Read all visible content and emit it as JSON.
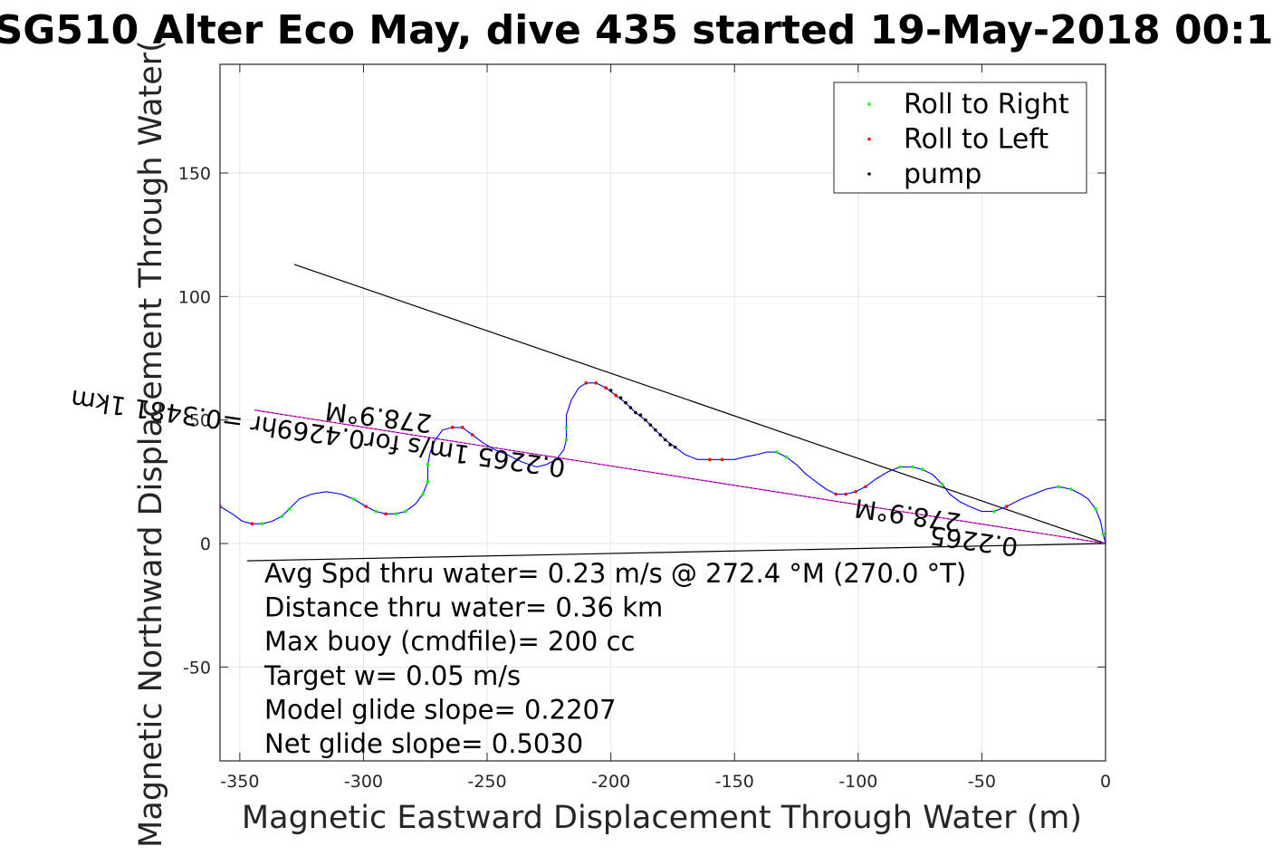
{
  "chart_data": {
    "type": "line",
    "title": "SG510 Alter Eco May, dive 435 started 19-May-2018 00:1",
    "xlabel": "Magnetic Eastward Displacement Through Water (m)",
    "ylabel": "Magnetic Northward Displacement Through Water(",
    "xlim": [
      -358,
      0
    ],
    "ylim": [
      -88,
      194
    ],
    "xticks": [
      -350,
      -300,
      -250,
      -200,
      -150,
      -100,
      -50,
      0
    ],
    "yticks": [
      -50,
      0,
      50,
      100,
      150
    ],
    "grid": true,
    "legend_position": "top-right",
    "legend": [
      {
        "label": "Roll to Right",
        "color": "#00ff00"
      },
      {
        "label": "Roll to Left",
        "color": "#ff0000"
      },
      {
        "label": "pump",
        "color": "#000000"
      }
    ],
    "track_color": "#0000ff",
    "track": [
      [
        0,
        0
      ],
      [
        -1,
        4
      ],
      [
        -2,
        9
      ],
      [
        -4,
        14
      ],
      [
        -7,
        18
      ],
      [
        -10,
        20
      ],
      [
        -14,
        22
      ],
      [
        -19,
        23
      ],
      [
        -24,
        22
      ],
      [
        -29,
        20
      ],
      [
        -34,
        18
      ],
      [
        -40,
        15
      ],
      [
        -45,
        13
      ],
      [
        -50,
        13
      ],
      [
        -55,
        15
      ],
      [
        -59,
        17
      ],
      [
        -63,
        20
      ],
      [
        -66,
        24
      ],
      [
        -70,
        28
      ],
      [
        -74,
        30
      ],
      [
        -78,
        31
      ],
      [
        -83,
        31
      ],
      [
        -88,
        29
      ],
      [
        -93,
        26
      ],
      [
        -97,
        23
      ],
      [
        -101,
        21
      ],
      [
        -105,
        20
      ],
      [
        -109,
        20
      ],
      [
        -113,
        22
      ],
      [
        -117,
        25
      ],
      [
        -121,
        28
      ],
      [
        -125,
        32
      ],
      [
        -129,
        35
      ],
      [
        -133,
        37
      ],
      [
        -137,
        37
      ],
      [
        -141,
        36
      ],
      [
        -146,
        35
      ],
      [
        -150,
        34
      ],
      [
        -155,
        34
      ],
      [
        -160,
        34
      ],
      [
        -165,
        34
      ],
      [
        -170,
        36
      ],
      [
        -174,
        39
      ],
      [
        -178,
        42
      ],
      [
        -182,
        46
      ],
      [
        -186,
        50
      ],
      [
        -190,
        53
      ],
      [
        -194,
        57
      ],
      [
        -198,
        60
      ],
      [
        -202,
        63
      ],
      [
        -206,
        65
      ],
      [
        -210,
        65
      ],
      [
        -213,
        63
      ],
      [
        -216,
        58
      ],
      [
        -218,
        52
      ],
      [
        -218,
        47
      ],
      [
        -218,
        42
      ],
      [
        -219,
        38
      ],
      [
        -222,
        34
      ],
      [
        -226,
        32
      ],
      [
        -230,
        31
      ],
      [
        -236,
        33
      ],
      [
        -242,
        36
      ],
      [
        -247,
        38
      ],
      [
        -252,
        41
      ],
      [
        -256,
        44
      ],
      [
        -260,
        47
      ],
      [
        -264,
        47
      ],
      [
        -268,
        46
      ],
      [
        -271,
        42
      ],
      [
        -273,
        37
      ],
      [
        -274,
        32
      ],
      [
        -274,
        25
      ],
      [
        -276,
        20
      ],
      [
        -279,
        16
      ],
      [
        -283,
        13
      ],
      [
        -287,
        12
      ],
      [
        -291,
        12
      ],
      [
        -295,
        13
      ],
      [
        -299,
        15
      ],
      [
        -304,
        18
      ],
      [
        -309,
        20
      ],
      [
        -315,
        21
      ],
      [
        -321,
        20
      ],
      [
        -326,
        18
      ],
      [
        -330,
        14
      ],
      [
        -333,
        11
      ],
      [
        -337,
        9
      ],
      [
        -341,
        8
      ],
      [
        -345,
        8
      ],
      [
        -349,
        9
      ],
      [
        -353,
        12
      ],
      [
        -358,
        15
      ]
    ],
    "roll_right_points": [
      [
        -1,
        4
      ],
      [
        -4,
        14
      ],
      [
        -14,
        22
      ],
      [
        -19,
        23
      ],
      [
        -45,
        13
      ],
      [
        -66,
        24
      ],
      [
        -74,
        30
      ],
      [
        -78,
        31
      ],
      [
        -83,
        31
      ],
      [
        -133,
        37
      ],
      [
        -129,
        35
      ],
      [
        -218,
        47
      ],
      [
        -218,
        42
      ],
      [
        -274,
        32
      ],
      [
        -274,
        25
      ],
      [
        -276,
        20
      ],
      [
        -283,
        13
      ],
      [
        -287,
        12
      ],
      [
        -295,
        13
      ],
      [
        -304,
        18
      ],
      [
        -330,
        14
      ],
      [
        -333,
        11
      ],
      [
        -341,
        8
      ]
    ],
    "roll_left_points": [
      [
        -40,
        15
      ],
      [
        -97,
        23
      ],
      [
        -101,
        21
      ],
      [
        -105,
        20
      ],
      [
        -109,
        20
      ],
      [
        -155,
        34
      ],
      [
        -160,
        34
      ],
      [
        -198,
        60
      ],
      [
        -202,
        63
      ],
      [
        -206,
        65
      ],
      [
        -210,
        65
      ],
      [
        -256,
        44
      ],
      [
        -260,
        47
      ],
      [
        -264,
        47
      ],
      [
        -291,
        12
      ],
      [
        -299,
        15
      ],
      [
        -345,
        8
      ],
      [
        -358,
        15
      ]
    ],
    "pump_points": [
      [
        -186,
        50
      ],
      [
        -188,
        52
      ],
      [
        -190,
        53
      ],
      [
        -192,
        55
      ],
      [
        -194,
        57
      ],
      [
        -196,
        59
      ],
      [
        -198,
        60
      ],
      [
        -200,
        62
      ],
      [
        -184,
        48
      ],
      [
        -182,
        46
      ],
      [
        -180,
        44
      ],
      [
        -178,
        42
      ],
      [
        -176,
        40
      ],
      [
        -174,
        39
      ]
    ],
    "lines": [
      {
        "name": "black upper",
        "color": "#000000",
        "x": [
          0,
          -328
        ],
        "y": [
          0,
          113
        ]
      },
      {
        "name": "black lower",
        "color": "#000000",
        "x": [
          0,
          -347
        ],
        "y": [
          0,
          -7
        ]
      },
      {
        "name": "magenta heading",
        "color": "#ff00ff",
        "x": [
          0,
          -344
        ],
        "y": [
          0,
          54
        ]
      },
      {
        "name": "black heading overlay",
        "color": "#000000",
        "x": [
          0,
          -344
        ],
        "y": [
          0,
          54
        ],
        "dashed": true
      }
    ],
    "annotations": [
      {
        "text": "278.9°M",
        "x": -272,
        "y": 52,
        "rotation": 187
      },
      {
        "text": "0.2265 1m/s for0.4269hr =0.3481 1km",
        "x": -218,
        "y": 34,
        "rotation": 188
      },
      {
        "text": "278.9°M",
        "x": -58,
        "y": 12,
        "rotation": 188
      },
      {
        "text": "0.2265",
        "x": -35,
        "y": 2,
        "rotation": 188
      }
    ],
    "info_lines": [
      "Avg Spd thru water=  0.23 m/s @ 272.4 °M (270.0 °T)",
      "Distance thru water=  0.36 km",
      "Max buoy (cmdfile)= 200 cc",
      "Target w= 0.05 m/s",
      "Model glide slope= 0.2207",
      "Net glide slope= 0.5030"
    ]
  }
}
